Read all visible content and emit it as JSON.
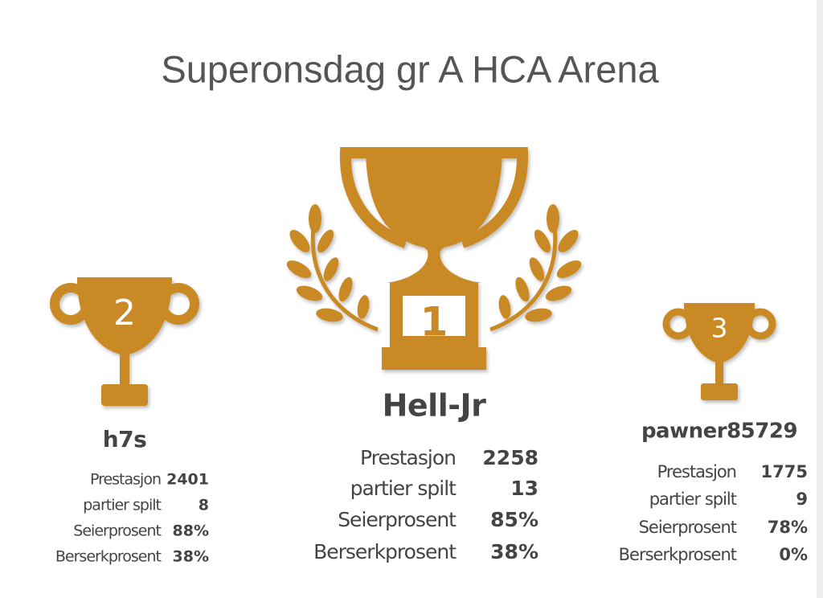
{
  "title": "Superonsdag gr A HCA Arena",
  "podium": [
    {
      "rank": "2",
      "name": "h7s",
      "stats": [
        {
          "label": "Prestasjon",
          "value": "2401"
        },
        {
          "label": "partier spilt",
          "value": "8"
        },
        {
          "label": "Seierprosent",
          "value": "88%"
        },
        {
          "label": "Berserkprosent",
          "value": "38%"
        }
      ]
    },
    {
      "rank": "1",
      "name": "Hell-Jr",
      "stats": [
        {
          "label": "Prestasjon",
          "value": "2258"
        },
        {
          "label": "partier spilt",
          "value": "13"
        },
        {
          "label": "Seierprosent",
          "value": "85%"
        },
        {
          "label": "Berserkprosent",
          "value": "38%"
        }
      ]
    },
    {
      "rank": "3",
      "name": "pawner85729",
      "stats": [
        {
          "label": "Prestasjon",
          "value": "1775"
        },
        {
          "label": "partier spilt",
          "value": "9"
        },
        {
          "label": "Seierprosent",
          "value": "78%"
        },
        {
          "label": "Berserkprosent",
          "value": "0%"
        }
      ]
    }
  ]
}
